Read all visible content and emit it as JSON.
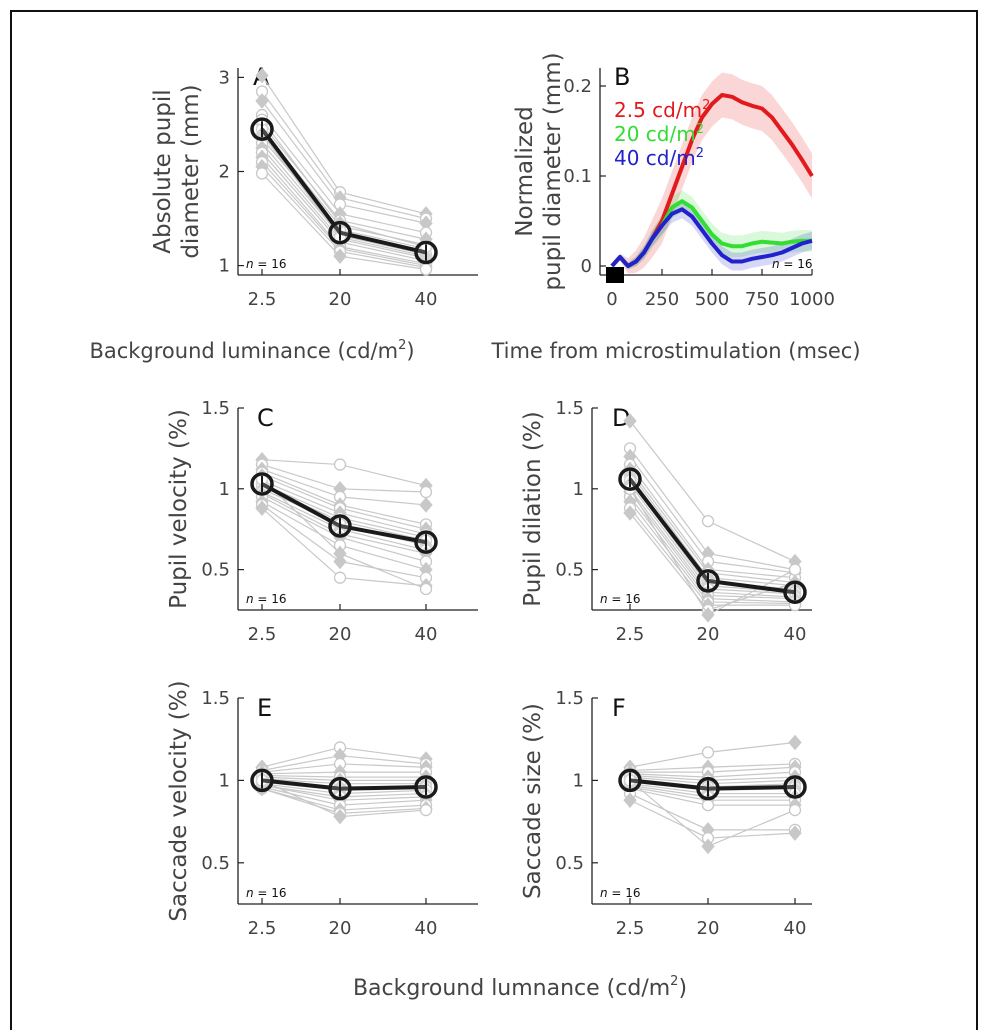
{
  "figure": {
    "xlabel_top_left": "Background luminance (cd/m",
    "xlabel_top_left_sup": "2",
    "xlabel_top_left_end": ")",
    "xlabel_top_right": "Time from microstimulation (msec)",
    "xlabel_bottom": "Background lumnance (cd/m",
    "xlabel_bottom_sup": "2",
    "xlabel_bottom_end": ")",
    "n_label_prefix": "n",
    "n_label_suffix": " = 16",
    "colors": {
      "individual": "#c8c8c8",
      "mean": "#1a1a1a",
      "red": "#e31a1c",
      "green": "#33dd33",
      "blue": "#2222cc",
      "axis": "#222222"
    }
  },
  "chart_data": [
    {
      "panel": "A",
      "type": "line",
      "ylabel_line1": "Absolute pupil",
      "ylabel_line2": "diameter (mm)",
      "categories": [
        "2.5",
        "20",
        "40"
      ],
      "ylim": [
        0.9,
        3.1
      ],
      "yticks": [
        "1",
        "2",
        "3"
      ],
      "mean": [
        2.45,
        1.35,
        1.14
      ],
      "individual": [
        [
          3.02,
          1.78,
          1.55
        ],
        [
          2.85,
          1.72,
          1.5
        ],
        [
          2.75,
          1.65,
          1.45
        ],
        [
          2.6,
          1.55,
          1.35
        ],
        [
          2.5,
          1.48,
          1.28
        ],
        [
          2.45,
          1.42,
          1.22
        ],
        [
          2.35,
          1.38,
          1.18
        ],
        [
          2.3,
          1.32,
          1.12
        ],
        [
          2.25,
          1.28,
          1.08
        ],
        [
          2.2,
          1.25,
          1.05
        ],
        [
          2.15,
          1.2,
          1.02
        ],
        [
          2.1,
          1.18,
          1.0
        ],
        [
          2.05,
          1.15,
          0.98
        ],
        [
          1.98,
          1.1,
          0.96
        ],
        [
          2.4,
          1.3,
          1.1
        ],
        [
          2.55,
          1.45,
          1.2
        ]
      ]
    },
    {
      "panel": "B",
      "type": "line",
      "ylabel_line1": "Normalized",
      "ylabel_line2": "pupil diameter (mm)",
      "xlim": [
        -20,
        1000
      ],
      "xticks": [
        "0",
        "250",
        "500",
        "750",
        "1000"
      ],
      "ylim": [
        -0.01,
        0.22
      ],
      "yticks": [
        "0",
        "0.1",
        "0.2"
      ],
      "legend": [
        {
          "label": "2.5 cd/m",
          "sup": "2"
        },
        {
          "label": "20 cd/m",
          "sup": "2"
        },
        {
          "label": "40 cd/m",
          "sup": "2"
        }
      ],
      "series": [
        {
          "name": "2.5 cd/m2",
          "x": [
            0,
            40,
            80,
            120,
            160,
            200,
            250,
            300,
            350,
            400,
            450,
            500,
            550,
            600,
            650,
            700,
            750,
            800,
            850,
            900,
            950,
            1000
          ],
          "y": [
            0.0,
            0.01,
            0.0,
            0.005,
            0.015,
            0.03,
            0.05,
            0.08,
            0.11,
            0.14,
            0.165,
            0.18,
            0.19,
            0.188,
            0.182,
            0.178,
            0.175,
            0.165,
            0.15,
            0.135,
            0.118,
            0.1
          ]
        },
        {
          "name": "20 cd/m2",
          "x": [
            0,
            40,
            80,
            120,
            160,
            200,
            250,
            300,
            350,
            400,
            450,
            500,
            550,
            600,
            650,
            700,
            750,
            800,
            850,
            900,
            950,
            1000
          ],
          "y": [
            0.0,
            0.01,
            0.0,
            0.005,
            0.015,
            0.03,
            0.045,
            0.065,
            0.072,
            0.065,
            0.05,
            0.035,
            0.025,
            0.022,
            0.022,
            0.025,
            0.027,
            0.026,
            0.025,
            0.027,
            0.028,
            0.028
          ]
        },
        {
          "name": "40 cd/m2",
          "x": [
            0,
            40,
            80,
            120,
            160,
            200,
            250,
            300,
            350,
            400,
            450,
            500,
            550,
            600,
            650,
            700,
            750,
            800,
            850,
            900,
            950,
            1000
          ],
          "y": [
            0.0,
            0.01,
            0.0,
            0.005,
            0.015,
            0.03,
            0.045,
            0.058,
            0.063,
            0.055,
            0.04,
            0.025,
            0.012,
            0.005,
            0.005,
            0.008,
            0.01,
            0.012,
            0.015,
            0.02,
            0.025,
            0.028
          ]
        }
      ]
    },
    {
      "panel": "C",
      "type": "line",
      "ylabel_line1": "Pupil velocity (%)",
      "categories": [
        "2.5",
        "20",
        "40"
      ],
      "ylim": [
        0.25,
        1.5
      ],
      "yticks": [
        "0.5",
        "1",
        "1.5"
      ],
      "mean": [
        1.03,
        0.77,
        0.67
      ],
      "individual": [
        [
          1.18,
          1.15,
          1.02
        ],
        [
          1.15,
          1.0,
          0.98
        ],
        [
          1.12,
          0.95,
          0.9
        ],
        [
          1.1,
          0.9,
          0.78
        ],
        [
          1.08,
          0.88,
          0.75
        ],
        [
          1.05,
          0.85,
          0.72
        ],
        [
          1.03,
          0.82,
          0.7
        ],
        [
          1.02,
          0.8,
          0.68
        ],
        [
          1.0,
          0.78,
          0.65
        ],
        [
          0.98,
          0.75,
          0.62
        ],
        [
          0.97,
          0.72,
          0.6
        ],
        [
          0.95,
          0.7,
          0.55
        ],
        [
          0.92,
          0.65,
          0.5
        ],
        [
          0.9,
          0.55,
          0.45
        ],
        [
          0.88,
          0.45,
          0.4
        ],
        [
          1.06,
          0.6,
          0.38
        ]
      ]
    },
    {
      "panel": "D",
      "type": "line",
      "ylabel_line1": "Pupil dilation (%)",
      "categories": [
        "2.5",
        "20",
        "40"
      ],
      "ylim": [
        0.25,
        1.5
      ],
      "yticks": [
        "0.5",
        "1",
        "1.5"
      ],
      "mean": [
        1.06,
        0.43,
        0.36
      ],
      "individual": [
        [
          1.42,
          0.8,
          0.55
        ],
        [
          1.25,
          0.6,
          0.5
        ],
        [
          1.2,
          0.55,
          0.48
        ],
        [
          1.15,
          0.5,
          0.45
        ],
        [
          1.12,
          0.48,
          0.42
        ],
        [
          1.1,
          0.45,
          0.4
        ],
        [
          1.08,
          0.42,
          0.38
        ],
        [
          1.05,
          0.4,
          0.36
        ],
        [
          1.03,
          0.38,
          0.35
        ],
        [
          1.0,
          0.36,
          0.33
        ],
        [
          0.98,
          0.34,
          0.32
        ],
        [
          0.95,
          0.32,
          0.3
        ],
        [
          0.92,
          0.3,
          0.29
        ],
        [
          0.88,
          0.28,
          0.28
        ],
        [
          0.85,
          0.25,
          0.42
        ],
        [
          1.0,
          0.22,
          0.5
        ]
      ]
    },
    {
      "panel": "E",
      "type": "line",
      "ylabel_line1": "Saccade velocity (%)",
      "categories": [
        "2.5",
        "20",
        "40"
      ],
      "ylim": [
        0.25,
        1.5
      ],
      "yticks": [
        "0.5",
        "1",
        "1.5"
      ],
      "mean": [
        1.0,
        0.95,
        0.96
      ],
      "individual": [
        [
          1.08,
          1.2,
          1.13
        ],
        [
          1.06,
          1.15,
          1.1
        ],
        [
          1.05,
          1.1,
          1.08
        ],
        [
          1.04,
          1.05,
          1.05
        ],
        [
          1.03,
          1.02,
          1.02
        ],
        [
          1.02,
          1.0,
          1.0
        ],
        [
          1.01,
          0.98,
          0.98
        ],
        [
          1.0,
          0.96,
          0.96
        ],
        [
          0.99,
          0.94,
          0.95
        ],
        [
          0.98,
          0.92,
          0.94
        ],
        [
          0.97,
          0.9,
          0.92
        ],
        [
          0.97,
          0.88,
          0.9
        ],
        [
          0.96,
          0.85,
          0.88
        ],
        [
          0.95,
          0.82,
          0.85
        ],
        [
          0.95,
          0.8,
          0.83
        ],
        [
          1.0,
          0.78,
          0.82
        ]
      ]
    },
    {
      "panel": "F",
      "type": "line",
      "ylabel_line1": "Saccade size (%)",
      "categories": [
        "2.5",
        "20",
        "40"
      ],
      "ylim": [
        0.25,
        1.5
      ],
      "yticks": [
        "0.5",
        "1",
        "1.5"
      ],
      "mean": [
        1.0,
        0.95,
        0.96
      ],
      "individual": [
        [
          1.08,
          1.17,
          1.23
        ],
        [
          1.06,
          1.08,
          1.1
        ],
        [
          1.05,
          1.05,
          1.08
        ],
        [
          1.04,
          1.02,
          1.05
        ],
        [
          1.03,
          1.0,
          1.02
        ],
        [
          1.02,
          0.98,
          1.0
        ],
        [
          1.01,
          0.96,
          0.98
        ],
        [
          1.0,
          0.95,
          0.96
        ],
        [
          0.99,
          0.94,
          0.95
        ],
        [
          0.98,
          0.92,
          0.92
        ],
        [
          0.97,
          0.9,
          0.9
        ],
        [
          0.96,
          0.88,
          0.88
        ],
        [
          0.95,
          0.85,
          0.85
        ],
        [
          0.92,
          0.7,
          0.7
        ],
        [
          0.88,
          0.65,
          0.68
        ],
        [
          1.0,
          0.6,
          0.82
        ]
      ]
    }
  ]
}
